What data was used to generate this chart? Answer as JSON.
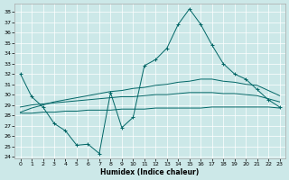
{
  "xlabel": "Humidex (Indice chaleur)",
  "background_color": "#cce8e8",
  "grid_color": "#ffffff",
  "line_color": "#006666",
  "ylim": [
    23.8,
    38.8
  ],
  "xlim": [
    -0.5,
    23.5
  ],
  "yticks": [
    24,
    25,
    26,
    27,
    28,
    29,
    30,
    31,
    32,
    33,
    34,
    35,
    36,
    37,
    38
  ],
  "xticks": [
    0,
    1,
    2,
    3,
    4,
    5,
    6,
    7,
    8,
    9,
    10,
    11,
    12,
    13,
    14,
    15,
    16,
    17,
    18,
    19,
    20,
    21,
    22,
    23
  ],
  "line1_x": [
    0,
    1,
    2,
    3,
    4,
    5,
    6,
    7,
    8,
    9,
    10,
    11,
    12,
    13,
    14,
    15,
    16,
    17,
    18,
    19,
    20,
    21,
    22,
    23
  ],
  "line1_y": [
    32.0,
    29.8,
    28.8,
    27.2,
    26.5,
    25.1,
    25.2,
    24.3,
    30.2,
    26.8,
    27.8,
    32.8,
    33.4,
    34.5,
    36.8,
    38.3,
    36.8,
    34.8,
    33.0,
    32.0,
    31.5,
    30.5,
    29.5,
    28.8
  ],
  "line2_x": [
    0,
    1,
    2,
    3,
    4,
    5,
    6,
    7,
    8,
    9,
    10,
    11,
    12,
    13,
    14,
    15,
    16,
    17,
    18,
    19,
    20,
    21,
    22,
    23
  ],
  "line2_y": [
    28.3,
    28.7,
    29.0,
    29.3,
    29.5,
    29.7,
    29.9,
    30.1,
    30.3,
    30.4,
    30.6,
    30.7,
    30.9,
    31.0,
    31.2,
    31.3,
    31.5,
    31.5,
    31.3,
    31.2,
    31.0,
    30.9,
    30.4,
    29.9
  ],
  "line3_x": [
    0,
    1,
    2,
    3,
    4,
    5,
    6,
    7,
    8,
    9,
    10,
    11,
    12,
    13,
    14,
    15,
    16,
    17,
    18,
    19,
    20,
    21,
    22,
    23
  ],
  "line3_y": [
    28.8,
    29.0,
    29.1,
    29.2,
    29.3,
    29.4,
    29.5,
    29.6,
    29.7,
    29.8,
    29.8,
    29.9,
    30.0,
    30.0,
    30.1,
    30.2,
    30.2,
    30.2,
    30.1,
    30.1,
    30.0,
    29.9,
    29.6,
    29.3
  ],
  "line4_x": [
    0,
    1,
    2,
    3,
    4,
    5,
    6,
    7,
    8,
    9,
    10,
    11,
    12,
    13,
    14,
    15,
    16,
    17,
    18,
    19,
    20,
    21,
    22,
    23
  ],
  "line4_y": [
    28.2,
    28.2,
    28.3,
    28.3,
    28.4,
    28.4,
    28.5,
    28.5,
    28.5,
    28.6,
    28.6,
    28.6,
    28.7,
    28.7,
    28.7,
    28.7,
    28.7,
    28.8,
    28.8,
    28.8,
    28.8,
    28.8,
    28.8,
    28.7
  ]
}
